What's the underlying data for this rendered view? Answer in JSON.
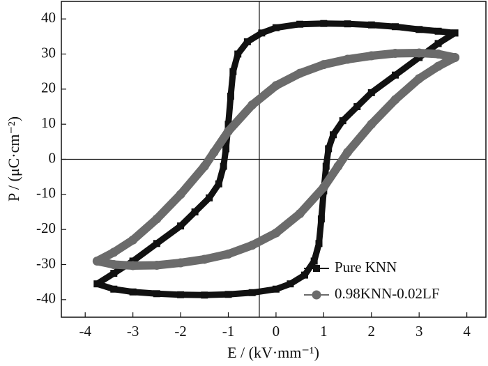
{
  "chart_data": {
    "type": "scatter",
    "xlabel": "E / (kV·mm⁻¹)",
    "ylabel": "P / (μC·cm⁻²)",
    "xlim": [
      -4.5,
      4.4
    ],
    "ylim": [
      -45,
      45
    ],
    "xticks": [
      -4,
      -3,
      -2,
      -1,
      0,
      1,
      2,
      3,
      4
    ],
    "yticks": [
      -40,
      -30,
      -20,
      -10,
      0,
      10,
      20,
      30,
      40
    ],
    "reference_lines": {
      "x": -0.35,
      "y": 0
    },
    "legend": "lower right",
    "series": [
      {
        "name": "Pure KNN",
        "color": "#111111",
        "marker": "square",
        "x": [
          3.75,
          3.4,
          3.0,
          2.5,
          2.0,
          1.5,
          1.0,
          0.5,
          0,
          -0.3,
          -0.6,
          -0.8,
          -0.9,
          -0.95,
          -1.0,
          -1.05,
          -1.1,
          -1.2,
          -1.4,
          -1.7,
          -2.0,
          -2.5,
          -3.0,
          -3.4,
          -3.75,
          -3.4,
          -3.0,
          -2.5,
          -2.0,
          -1.5,
          -1.0,
          -0.5,
          0,
          0.3,
          0.6,
          0.8,
          0.9,
          0.95,
          1.0,
          1.05,
          1.1,
          1.2,
          1.4,
          1.7,
          2.0,
          2.5,
          3.0,
          3.4,
          3.75
        ],
        "values": [
          36,
          36.5,
          37,
          37.8,
          38.3,
          38.6,
          38.7,
          38.5,
          37.5,
          36,
          33.5,
          30,
          25,
          18,
          10,
          3,
          -2,
          -7,
          -11,
          -15,
          -19,
          -24,
          -29,
          -32.5,
          -35.5,
          -37,
          -37.8,
          -38.3,
          -38.6,
          -38.7,
          -38.5,
          -38,
          -37,
          -35.5,
          -33,
          -29,
          -24,
          -17,
          -9,
          -2,
          3,
          7,
          11,
          15,
          19,
          24,
          29,
          33,
          36
        ]
      },
      {
        "name": "0.98KNN-0.02LF",
        "color": "#6b6b6b",
        "marker": "circle",
        "x": [
          3.75,
          3.4,
          3.0,
          2.5,
          2.0,
          1.5,
          1.0,
          0.5,
          0,
          -0.5,
          -1.0,
          -1.3,
          -1.5,
          -2.0,
          -2.5,
          -3.0,
          -3.4,
          -3.75,
          -3.4,
          -3.0,
          -2.5,
          -2.0,
          -1.5,
          -1.0,
          -0.5,
          0,
          0.5,
          1.0,
          1.3,
          1.5,
          2.0,
          2.5,
          3.0,
          3.4,
          3.75
        ],
        "values": [
          29,
          30,
          30.3,
          30.2,
          29.5,
          28.5,
          27,
          24.5,
          21,
          15.5,
          8,
          2,
          -2,
          -10,
          -17,
          -23,
          -26.5,
          -29,
          -30,
          -30.3,
          -30.2,
          -29.5,
          -28.5,
          -27,
          -24.5,
          -21,
          -15.5,
          -8,
          -2,
          2,
          10,
          17,
          23,
          26.5,
          29
        ]
      }
    ]
  }
}
